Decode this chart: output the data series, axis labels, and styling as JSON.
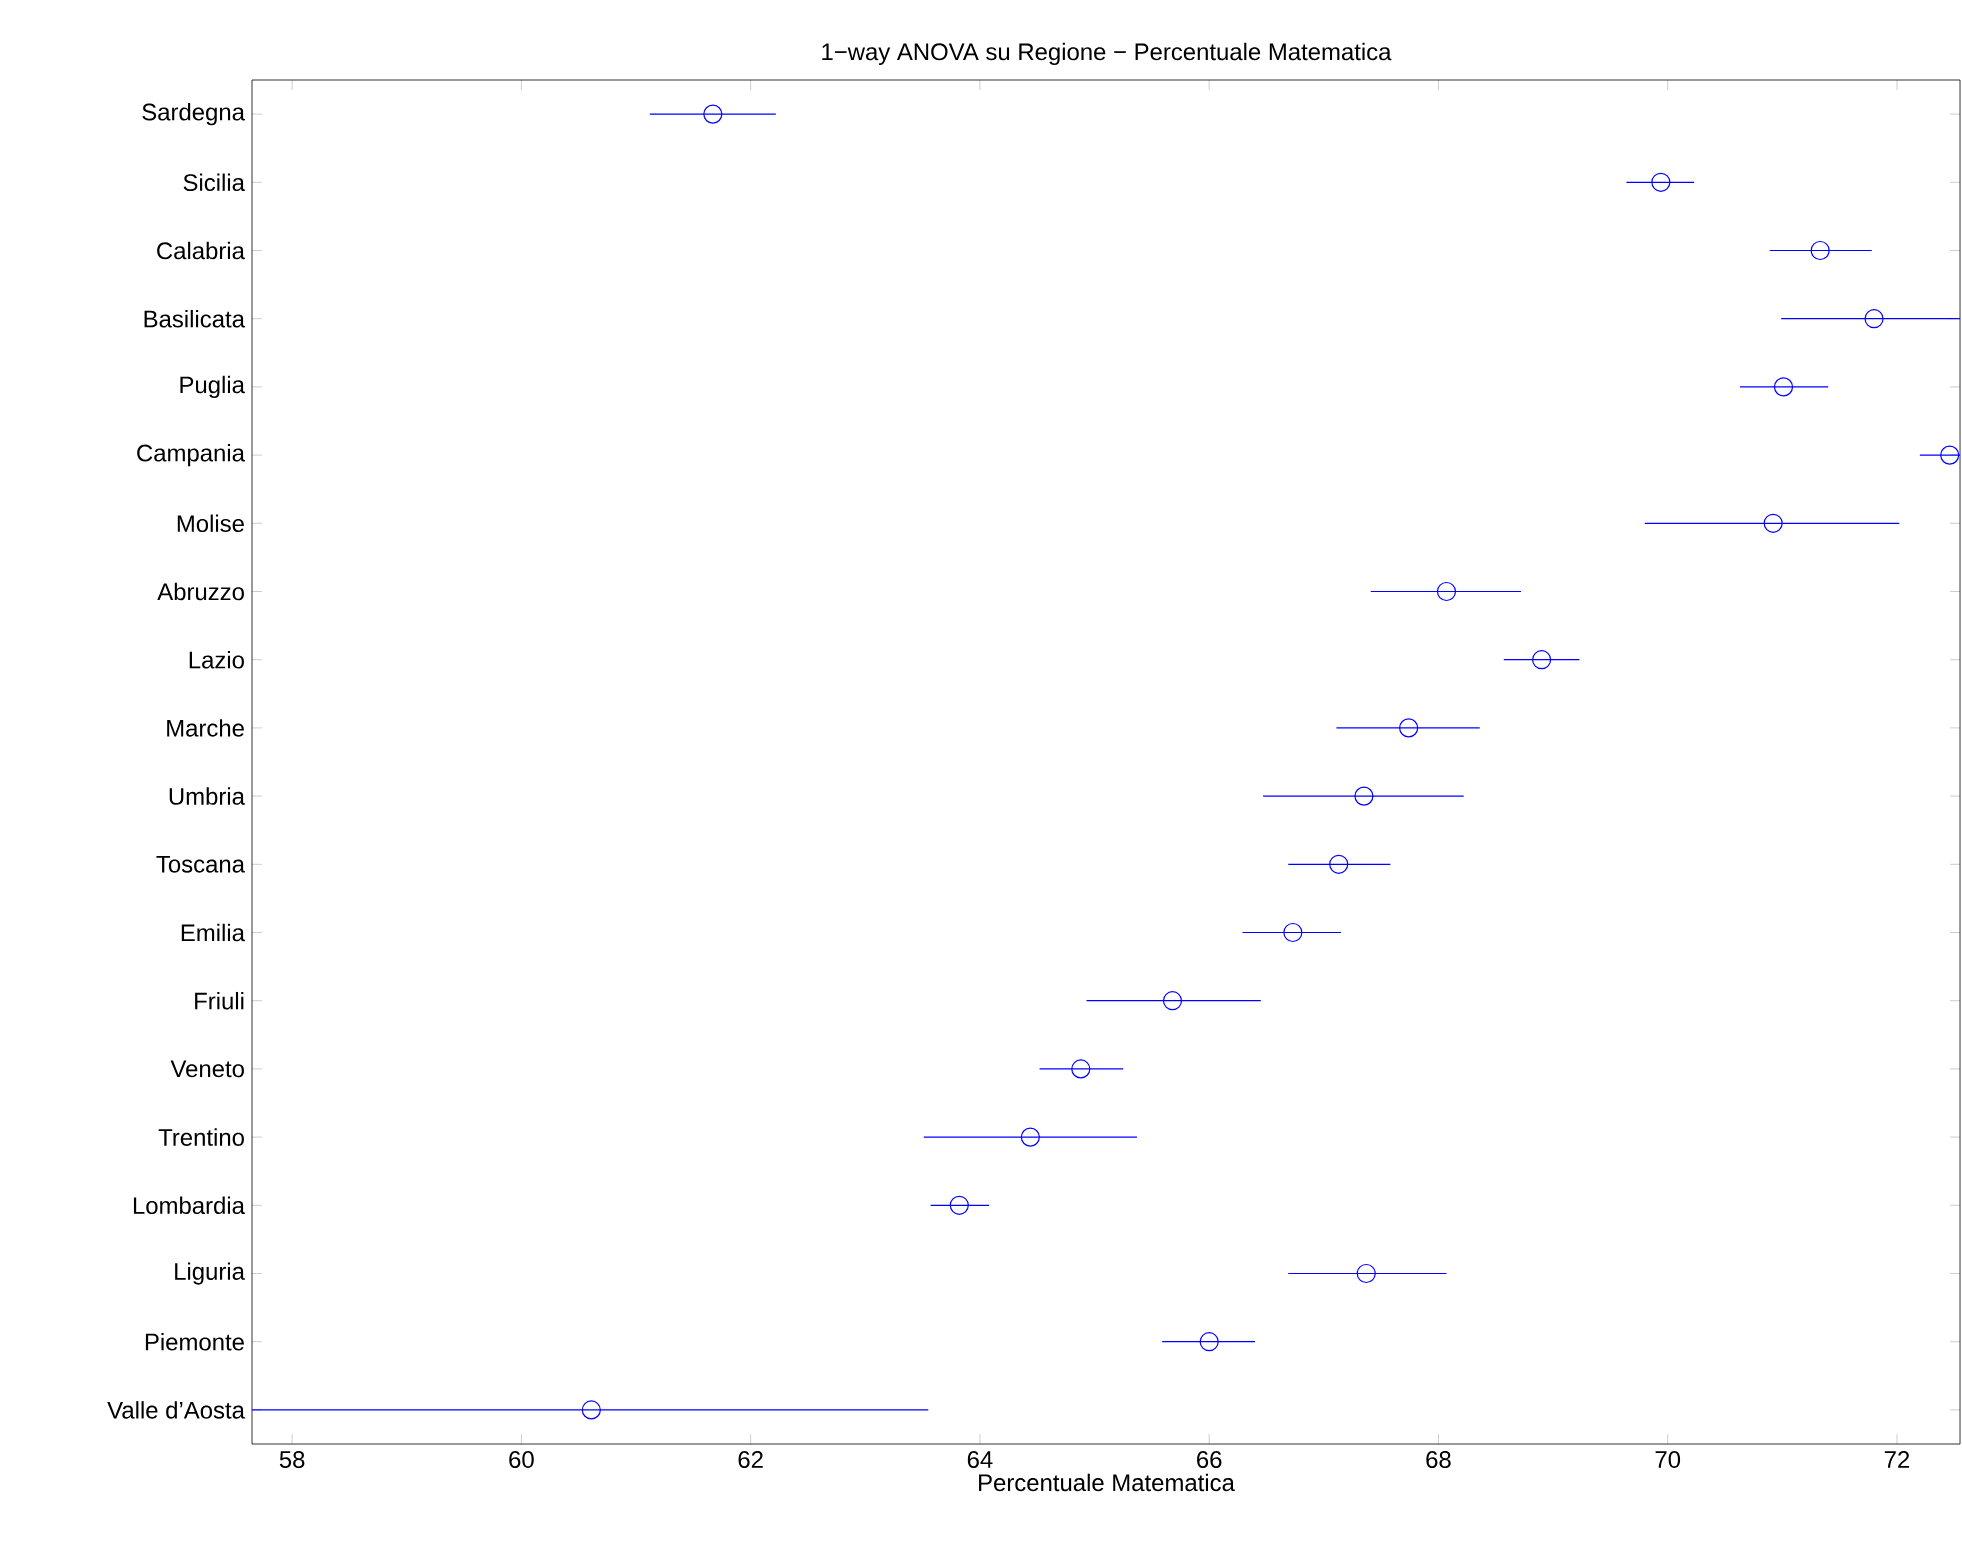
{
  "chart_data": {
    "type": "scatter",
    "orientation": "horizontal",
    "title": "1−way ANOVA su Regione − Percentuale Matematica",
    "xlabel": "Percentuale Matematica",
    "categories": [
      "Sardegna",
      "Sicilia",
      "Calabria",
      "Basilicata",
      "Puglia",
      "Campania",
      "Molise",
      "Abruzzo",
      "Lazio",
      "Marche",
      "Umbria",
      "Toscana",
      "Emilia",
      "Friuli",
      "Veneto",
      "Trentino",
      "Lombardia",
      "Liguria",
      "Piemonte",
      "Valle d’Aosta"
    ],
    "values": [
      61.67,
      69.94,
      71.33,
      71.8,
      71.01,
      72.46,
      70.92,
      68.07,
      68.9,
      67.74,
      67.35,
      67.13,
      66.73,
      65.68,
      64.88,
      64.44,
      63.82,
      67.37,
      66.0,
      60.61
    ],
    "errors": [
      [
        61.12,
        62.22
      ],
      [
        69.64,
        70.23
      ],
      [
        70.89,
        71.78
      ],
      [
        70.99,
        72.55
      ],
      [
        70.63,
        71.4
      ],
      [
        72.2,
        72.55
      ],
      [
        69.8,
        72.02
      ],
      [
        67.41,
        68.72
      ],
      [
        68.57,
        69.23
      ],
      [
        67.11,
        68.36
      ],
      [
        66.47,
        68.22
      ],
      [
        66.69,
        67.58
      ],
      [
        66.29,
        67.15
      ],
      [
        64.93,
        66.45
      ],
      [
        64.52,
        65.25
      ],
      [
        63.51,
        65.37
      ],
      [
        63.57,
        64.08
      ],
      [
        66.69,
        68.07
      ],
      [
        65.59,
        66.4
      ],
      [
        57.65,
        63.55
      ]
    ],
    "color": "#0000ff",
    "marker": "circle",
    "grid": false,
    "xlim": [
      57.65,
      72.55
    ],
    "xticks": [
      58,
      60,
      62,
      64,
      66,
      68,
      70,
      72
    ]
  }
}
